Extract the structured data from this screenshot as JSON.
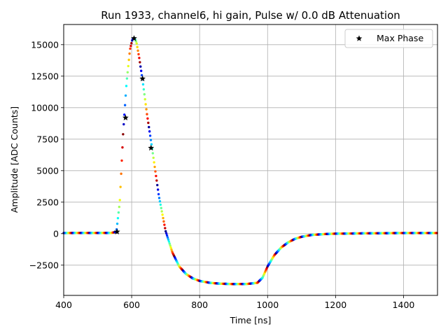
{
  "chart_data": {
    "type": "scatter",
    "title": "Run 1933, channel6, hi gain, Pulse w/ 0.0 dB Attenuation",
    "xlabel": "Time [ns]",
    "ylabel": "Amplitude [ADC Counts]",
    "xlim": [
      400,
      1500
    ],
    "ylim": [
      -4900,
      16600
    ],
    "xticks": [
      400,
      600,
      800,
      1000,
      1200,
      1400
    ],
    "yticks": [
      -2500,
      0,
      2500,
      5000,
      7500,
      10000,
      12500,
      15000
    ],
    "ytick_labels": [
      "−2500",
      "0",
      "2500",
      "5000",
      "7500",
      "10000",
      "12500",
      "15000"
    ],
    "grid": true,
    "legend": {
      "placement": "top-right",
      "entries": [
        "Max Phase"
      ]
    },
    "colormap": "jet",
    "series": [
      {
        "name": "",
        "kind": "waveform",
        "x": [
          400,
          540,
          555,
          565,
          575,
          585,
          595,
          602,
          608,
          614,
          622,
          632,
          645,
          660,
          680,
          700,
          720,
          740,
          760,
          780,
          800,
          830,
          860,
          900,
          940,
          970,
          985,
          1000,
          1020,
          1040,
          1060,
          1080,
          1100,
          1130,
          1170,
          1200,
          1300,
          1400,
          1500
        ],
        "y": [
          50,
          60,
          150,
          2500,
          8000,
          12000,
          14600,
          15400,
          15550,
          15200,
          14000,
          12200,
          9500,
          6800,
          3000,
          200,
          -1500,
          -2600,
          -3200,
          -3550,
          -3750,
          -3900,
          -3970,
          -4000,
          -3990,
          -3900,
          -3500,
          -2600,
          -1700,
          -1100,
          -700,
          -420,
          -250,
          -100,
          -30,
          0,
          30,
          50,
          50
        ]
      },
      {
        "name": "Max Phase",
        "kind": "markers",
        "marker": "star",
        "color": "#000000",
        "x": [
          557,
          582,
          607,
          632,
          657
        ],
        "y": [
          150,
          9200,
          15500,
          12300,
          6800
        ]
      }
    ]
  }
}
